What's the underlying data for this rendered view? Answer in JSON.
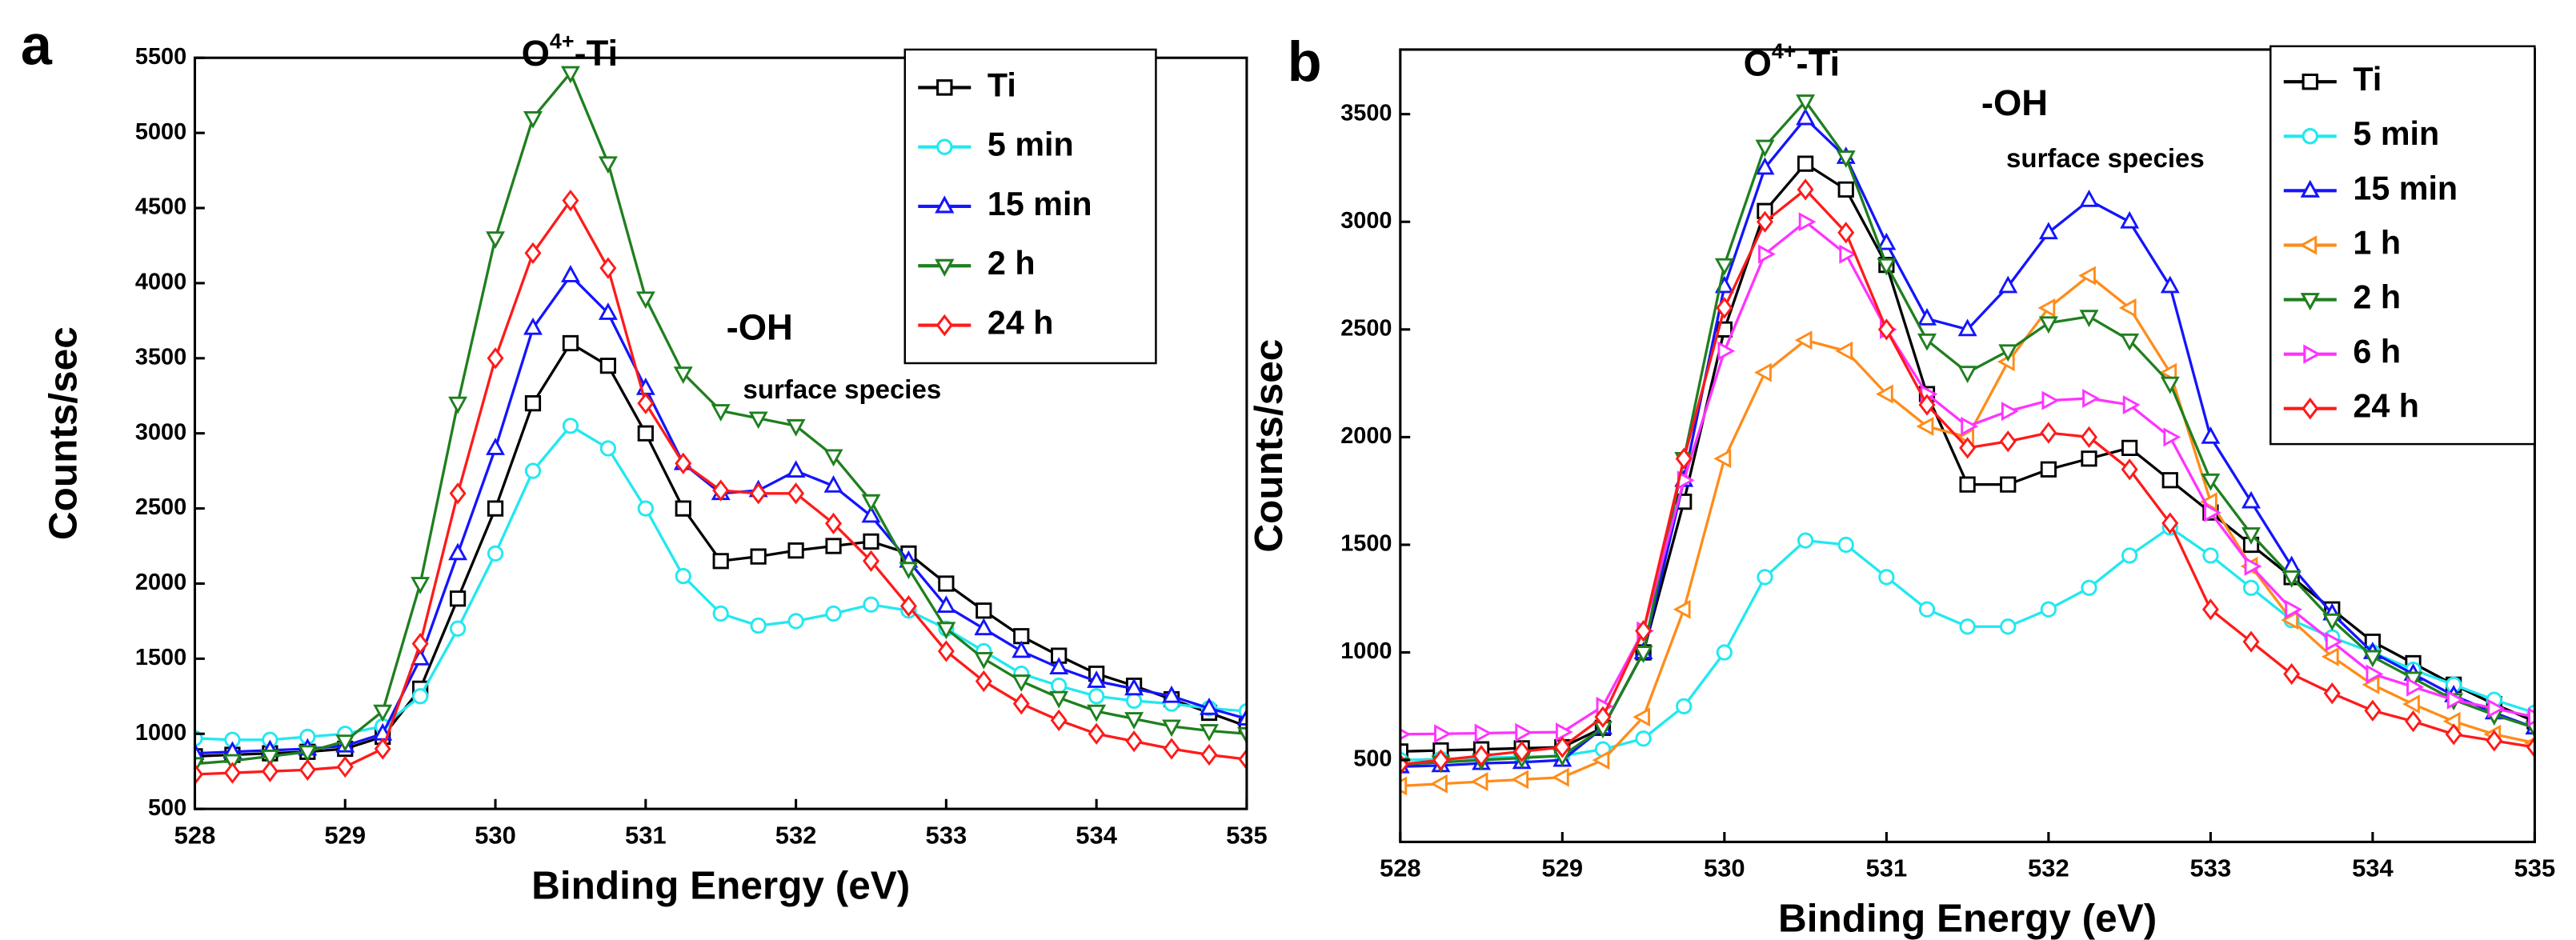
{
  "chart_data": [
    {
      "type": "line",
      "panel_label": "a",
      "annotations": [
        {
          "text": "O",
          "superscript": "4+",
          "suffix": "-Ti"
        },
        {
          "text": "-OH"
        },
        {
          "text": "surface species"
        }
      ],
      "x_label": "Binding Energy (eV)",
      "y_label": "Counts/sec",
      "xlim": [
        528,
        535
      ],
      "xticks": [
        528,
        529,
        530,
        531,
        532,
        533,
        534,
        535
      ],
      "ylim": [
        500,
        5500
      ],
      "yticks": [
        500,
        1000,
        1500,
        2000,
        2500,
        3000,
        3500,
        4000,
        4500,
        5000,
        5500
      ],
      "x": [
        528,
        528.25,
        528.5,
        528.75,
        529,
        529.25,
        529.5,
        529.75,
        530,
        530.25,
        530.5,
        530.75,
        531,
        531.25,
        531.5,
        531.75,
        532,
        532.25,
        532.5,
        532.75,
        533,
        533.25,
        533.5,
        533.75,
        534,
        534.25,
        534.5,
        534.75,
        535
      ],
      "series": [
        {
          "name": "Ti",
          "color": "#000000",
          "marker": "square",
          "values": [
            850,
            860,
            870,
            880,
            900,
            980,
            1300,
            1900,
            2500,
            3200,
            3600,
            3450,
            3000,
            2500,
            2150,
            2180,
            2220,
            2250,
            2280,
            2200,
            2000,
            1820,
            1650,
            1520,
            1400,
            1320,
            1230,
            1140,
            1050
          ]
        },
        {
          "name": "5 min",
          "color": "#22e8f0",
          "marker": "circle",
          "values": [
            970,
            960,
            960,
            980,
            1000,
            1050,
            1250,
            1700,
            2200,
            2750,
            3050,
            2900,
            2500,
            2050,
            1800,
            1720,
            1750,
            1800,
            1860,
            1820,
            1700,
            1550,
            1400,
            1320,
            1250,
            1220,
            1200,
            1170,
            1150
          ]
        },
        {
          "name": "15 min",
          "color": "#1414ff",
          "marker": "triangle-up",
          "values": [
            870,
            880,
            890,
            900,
            920,
            1000,
            1500,
            2200,
            2900,
            3700,
            4050,
            3800,
            3300,
            2800,
            2600,
            2620,
            2750,
            2650,
            2450,
            2150,
            1850,
            1700,
            1550,
            1440,
            1350,
            1300,
            1250,
            1170,
            1100
          ]
        },
        {
          "name": "2 h",
          "color": "#1f7f1f",
          "marker": "triangle-down",
          "values": [
            800,
            820,
            850,
            880,
            950,
            1150,
            2000,
            3200,
            4300,
            5100,
            5400,
            4800,
            3900,
            3400,
            3150,
            3100,
            3050,
            2850,
            2550,
            2100,
            1700,
            1500,
            1350,
            1240,
            1150,
            1100,
            1050,
            1020,
            1000
          ]
        },
        {
          "name": "24 h",
          "color": "#ff1a1a",
          "marker": "diamond",
          "values": [
            730,
            740,
            750,
            760,
            780,
            900,
            1600,
            2600,
            3500,
            4200,
            4550,
            4100,
            3200,
            2800,
            2620,
            2600,
            2600,
            2400,
            2150,
            1850,
            1550,
            1350,
            1200,
            1090,
            1000,
            950,
            900,
            860,
            830
          ]
        }
      ]
    },
    {
      "type": "line",
      "panel_label": "b",
      "annotations": [
        {
          "text": "O",
          "superscript": "4+",
          "suffix": "-Ti"
        },
        {
          "text": "-OH"
        },
        {
          "text": "surface species"
        }
      ],
      "x_label": "Binding Energy (eV)",
      "y_label": "Counts/sec",
      "xlim": [
        528,
        535
      ],
      "xticks": [
        528,
        529,
        530,
        531,
        532,
        533,
        534,
        535
      ],
      "ylim": [
        120,
        3800
      ],
      "yticks": [
        500,
        1000,
        1500,
        2000,
        2500,
        3000,
        3500
      ],
      "x": [
        528,
        528.25,
        528.5,
        528.75,
        529,
        529.25,
        529.5,
        529.75,
        530,
        530.25,
        530.5,
        530.75,
        531,
        531.25,
        531.5,
        531.75,
        532,
        532.25,
        532.5,
        532.75,
        533,
        533.25,
        533.5,
        533.75,
        534,
        534.25,
        534.5,
        534.75,
        535
      ],
      "series": [
        {
          "name": "Ti",
          "color": "#000000",
          "marker": "square",
          "values": [
            540,
            545,
            550,
            555,
            560,
            650,
            1000,
            1700,
            2500,
            3050,
            3270,
            3150,
            2800,
            2200,
            1780,
            1780,
            1850,
            1900,
            1950,
            1800,
            1650,
            1500,
            1350,
            1200,
            1050,
            950,
            850,
            760,
            680
          ]
        },
        {
          "name": "5 min",
          "color": "#22e8f0",
          "marker": "circle",
          "values": [
            500,
            505,
            510,
            515,
            520,
            550,
            600,
            750,
            1000,
            1350,
            1520,
            1500,
            1350,
            1200,
            1120,
            1120,
            1200,
            1300,
            1450,
            1580,
            1450,
            1300,
            1150,
            1070,
            1000,
            920,
            850,
            780,
            720
          ]
        },
        {
          "name": "15 min",
          "color": "#1414ff",
          "marker": "triangle-up",
          "values": [
            470,
            475,
            485,
            490,
            500,
            650,
            1000,
            1800,
            2700,
            3250,
            3480,
            3300,
            2900,
            2550,
            2500,
            2700,
            2950,
            3100,
            3000,
            2700,
            2000,
            1700,
            1400,
            1180,
            1000,
            900,
            800,
            720,
            650
          ]
        },
        {
          "name": "1 h",
          "color": "#ff8c1a",
          "marker": "triangle-left",
          "values": [
            380,
            390,
            400,
            410,
            420,
            500,
            700,
            1200,
            1900,
            2300,
            2450,
            2400,
            2200,
            2050,
            2000,
            2350,
            2600,
            2750,
            2600,
            2300,
            1700,
            1400,
            1150,
            980,
            850,
            760,
            680,
            620,
            580
          ]
        },
        {
          "name": "2 h",
          "color": "#1f7f1f",
          "marker": "triangle-down",
          "values": [
            480,
            490,
            500,
            510,
            520,
            650,
            1000,
            1900,
            2800,
            3350,
            3560,
            3300,
            2800,
            2450,
            2300,
            2400,
            2530,
            2560,
            2450,
            2250,
            1800,
            1550,
            1350,
            1150,
            980,
            880,
            780,
            710,
            650
          ]
        },
        {
          "name": "6 h",
          "color": "#ff33ff",
          "marker": "triangle-right",
          "values": [
            620,
            622,
            625,
            628,
            630,
            750,
            1100,
            1800,
            2400,
            2850,
            3000,
            2850,
            2500,
            2200,
            2050,
            2120,
            2170,
            2180,
            2150,
            2000,
            1650,
            1400,
            1200,
            1050,
            900,
            840,
            780,
            740,
            700
          ]
        },
        {
          "name": "24 h",
          "color": "#ff1a1a",
          "marker": "diamond",
          "values": [
            480,
            500,
            520,
            540,
            560,
            700,
            1100,
            1900,
            2600,
            3000,
            3150,
            2950,
            2500,
            2150,
            1950,
            1980,
            2020,
            2000,
            1850,
            1600,
            1200,
            1050,
            900,
            810,
            730,
            680,
            620,
            590,
            560
          ]
        }
      ]
    }
  ]
}
